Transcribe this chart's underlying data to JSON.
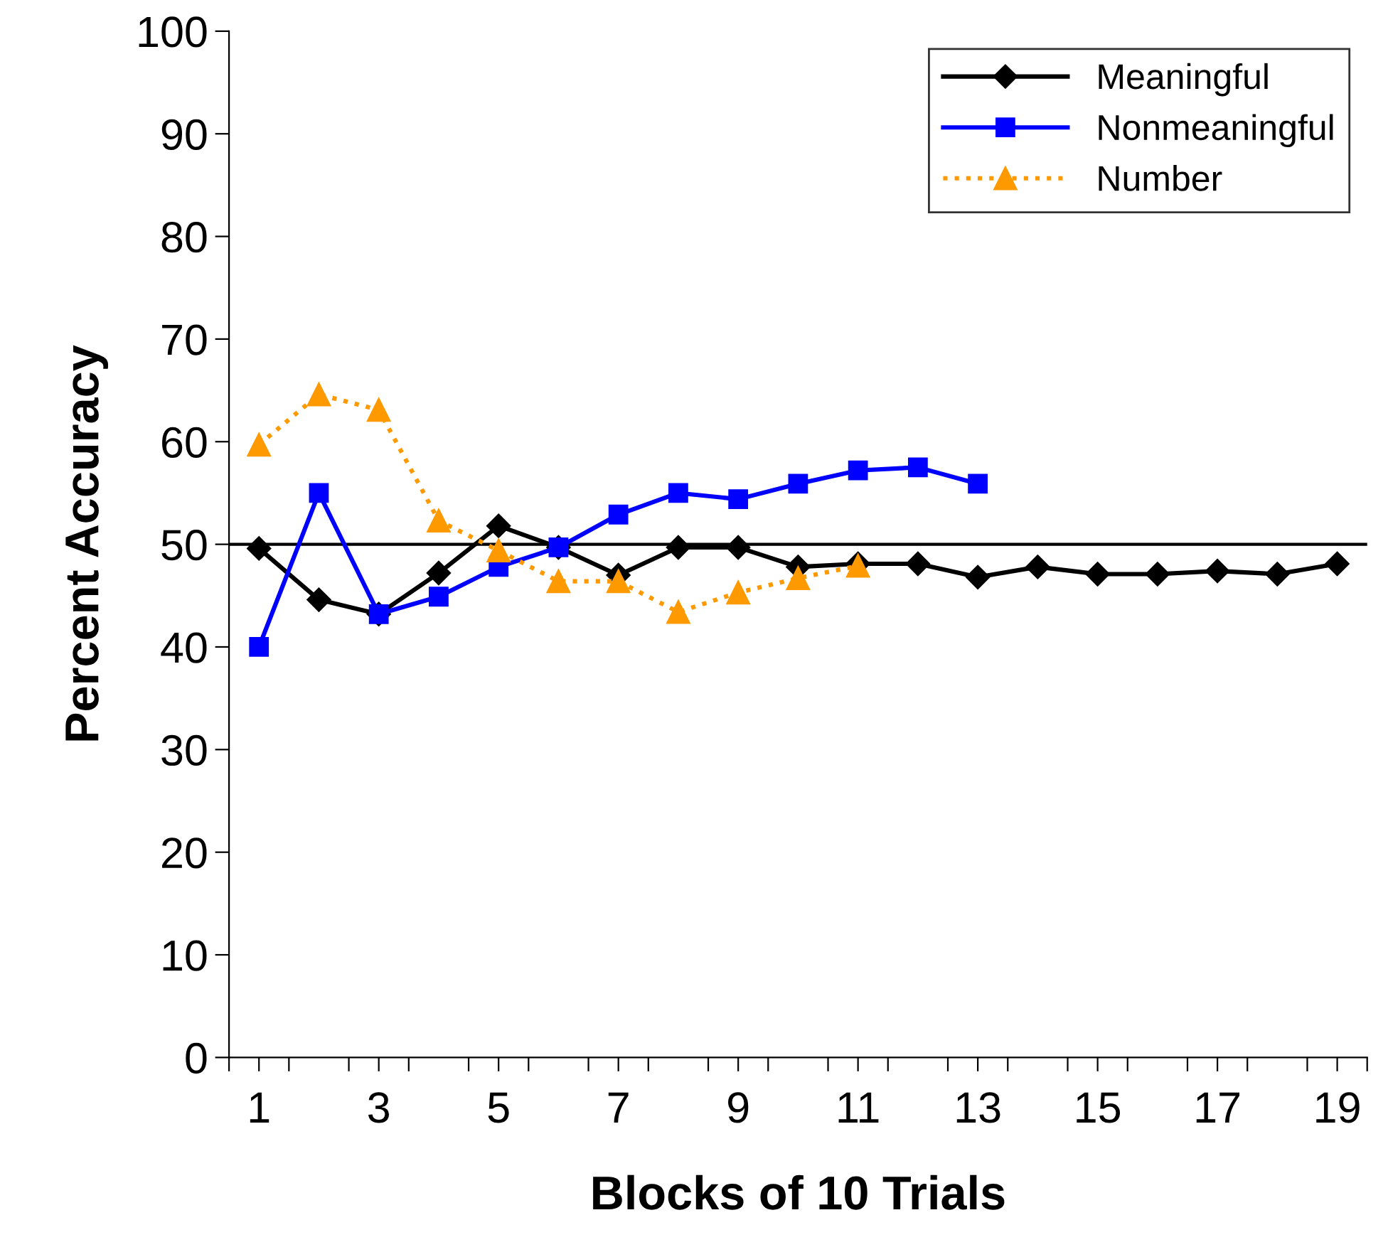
{
  "chart_data": {
    "type": "line",
    "xlabel": "Blocks of 10 Trials",
    "ylabel": "Percent Accuracy",
    "x": [
      1,
      2,
      3,
      4,
      5,
      6,
      7,
      8,
      9,
      10,
      11,
      12,
      13,
      14,
      15,
      16,
      17,
      18,
      19
    ],
    "series": [
      {
        "name": "Meaningful",
        "color": "#000000",
        "marker": "diamond",
        "line_style": "solid",
        "values": [
          49.6,
          44.6,
          43.2,
          47.2,
          51.8,
          49.7,
          47.0,
          49.7,
          49.7,
          47.8,
          48.1,
          48.1,
          46.8,
          47.8,
          47.1,
          47.1,
          47.4,
          47.1,
          48.1
        ]
      },
      {
        "name": "Nonmeaningful",
        "color": "#0000ff",
        "marker": "square",
        "line_style": "solid",
        "values": [
          40,
          55.0,
          43.2,
          44.9,
          47.8,
          49.7,
          52.9,
          55.0,
          54.4,
          55.9,
          57.2,
          57.5,
          55.9,
          null,
          null,
          null,
          null,
          null,
          null
        ]
      },
      {
        "name": "Number",
        "color": "#ff9900",
        "marker": "triangle",
        "line_style": "dotted",
        "values": [
          59.7,
          64.6,
          63.1,
          52.3,
          49.4,
          46.4,
          46.4,
          43.4,
          45.3,
          46.7,
          47.9,
          null,
          null,
          null,
          null,
          null,
          null,
          null,
          null
        ]
      }
    ],
    "xlim": [
      0.5,
      19.5
    ],
    "xticks": [
      {
        "value": 0.5,
        "label": null
      },
      1,
      {
        "value": 1.5,
        "label": null
      },
      {
        "value": 2.5,
        "label": null
      },
      3,
      {
        "value": 3.5,
        "label": null
      },
      {
        "value": 4.5,
        "label": null
      },
      5,
      {
        "value": 5.5,
        "label": null
      },
      {
        "value": 6.5,
        "label": null
      },
      7,
      {
        "value": 7.5,
        "label": null
      },
      {
        "value": 8.5,
        "label": null
      },
      9,
      {
        "value": 9.5,
        "label": null
      },
      {
        "value": 10.5,
        "label": null
      },
      11,
      {
        "value": 11.5,
        "label": null
      },
      {
        "value": 12.5,
        "label": null
      },
      13,
      {
        "value": 13.5,
        "label": null
      },
      {
        "value": 14.5,
        "label": null
      },
      15,
      {
        "value": 15.5,
        "label": null
      },
      {
        "value": 16.5,
        "label": null
      },
      17,
      {
        "value": 17.5,
        "label": null
      },
      {
        "value": 18.5,
        "label": null
      },
      19,
      {
        "value": 19.5,
        "label": null
      }
    ],
    "ylim": [
      0,
      100
    ],
    "yticks": [
      0,
      10,
      20,
      30,
      40,
      50,
      60,
      70,
      80,
      90,
      100
    ],
    "ref_lines": [
      {
        "axis": "y",
        "value": 50,
        "color": "#000000"
      }
    ],
    "grid": false,
    "legend": "top right"
  }
}
